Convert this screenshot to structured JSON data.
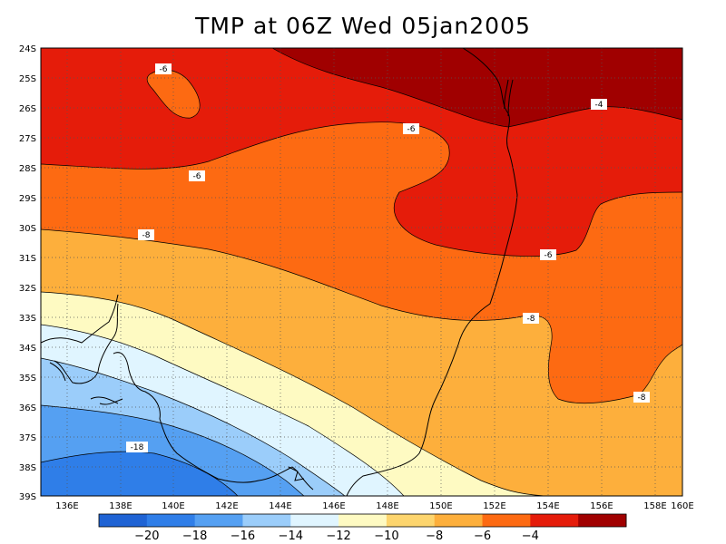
{
  "title": "TMP at 06Z Wed 05jan2005",
  "lat_labels": [
    "24S",
    "25S",
    "26S",
    "27S",
    "28S",
    "29S",
    "30S",
    "31S",
    "32S",
    "33S",
    "34S",
    "35S",
    "36S",
    "37S",
    "38S",
    "39S"
  ],
  "lon_labels": [
    "136E",
    "138E",
    "140E",
    "142E",
    "144E",
    "146E",
    "148E",
    "150E",
    "152E",
    "154E",
    "156E",
    "158E",
    "160E"
  ],
  "colorbar": {
    "colors": [
      "#1f63d4",
      "#2f7ee8",
      "#55a0f2",
      "#9bcdfa",
      "#e0f5ff",
      "#fefac2",
      "#fdd56e",
      "#fdaf3c",
      "#fd6a12",
      "#e51c0a",
      "#a00000"
    ],
    "labels": [
      "−20",
      "−18",
      "−16",
      "−14",
      "−12",
      "−10",
      "−8",
      "−6",
      "−4"
    ]
  },
  "contour_labels": [
    "-6",
    "-6",
    "-4",
    "-6",
    "-8",
    "-6",
    "-8",
    "-8",
    "-18"
  ],
  "colors": {
    "band_m4": "#a00000",
    "band_m6": "#e51c0a",
    "band_m8": "#fd6a12",
    "band_m10": "#fdaf3c",
    "band_m12": "#fefac2",
    "band_m14": "#e0f5ff",
    "band_m16": "#9bcdfa",
    "band_m18": "#55a0f2",
    "band_m20": "#2f7ee8"
  }
}
